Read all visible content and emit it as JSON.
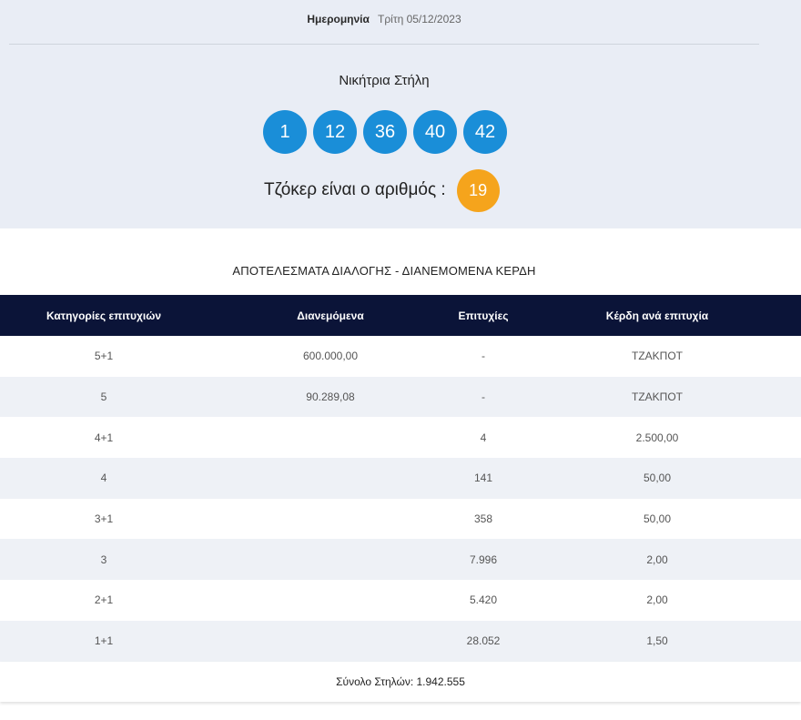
{
  "draw": {
    "date_label": "Ημερομηνία",
    "date_value": "Τρίτη 05/12/2023",
    "winning_title": "Νικήτρια Στήλη",
    "numbers": [
      "1",
      "12",
      "36",
      "40",
      "42"
    ],
    "joker_label": "Τζόκερ είναι ο αριθμός :",
    "joker_number": "19"
  },
  "results": {
    "title": "ΑΠΟΤΕΛΕΣΜΑΤΑ ΔΙΑΛΟΓΗΣ - ΔΙΑΝΕΜΟΜΕΝΑ ΚΕΡΔΗ",
    "headers": [
      "Κατηγορίες επιτυχιών",
      "Διανεμόμενα",
      "Επιτυχίες",
      "Κέρδη ανά επιτυχία"
    ],
    "rows": [
      [
        "5+1",
        "600.000,00",
        "-",
        "ΤΖΑΚΠΟΤ"
      ],
      [
        "5",
        "90.289,08",
        "-",
        "ΤΖΑΚΠΟΤ"
      ],
      [
        "4+1",
        "",
        "4",
        "2.500,00"
      ],
      [
        "4",
        "",
        "141",
        "50,00"
      ],
      [
        "3+1",
        "",
        "358",
        "50,00"
      ],
      [
        "3",
        "",
        "7.996",
        "2,00"
      ],
      [
        "2+1",
        "",
        "5.420",
        "2,00"
      ],
      [
        "1+1",
        "",
        "28.052",
        "1,50"
      ]
    ],
    "total": "Σύνολο Στηλών: 1.942.555"
  },
  "colors": {
    "ball": "#1a8ed8",
    "joker": "#f5a41c",
    "header_bg": "#0b1438",
    "panel_bg": "#e9edf5"
  }
}
